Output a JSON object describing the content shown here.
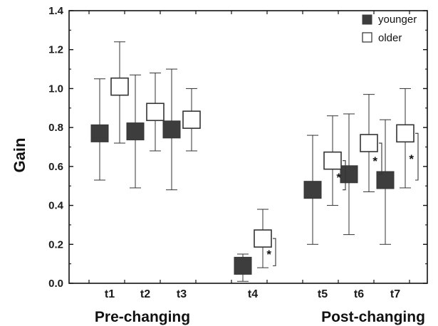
{
  "chart_data": {
    "type": "box",
    "ylabel": "Gain",
    "ylim": [
      0.0,
      1.4
    ],
    "yticks": [
      "0.0",
      "0.2",
      "0.4",
      "0.6",
      "0.8",
      "1.0",
      "1.2",
      "1.4"
    ],
    "categories": [
      "t1",
      "t2",
      "t3",
      "t4",
      "t5",
      "t6",
      "t7"
    ],
    "groups": [
      {
        "label": "Pre-changing",
        "categories": [
          "t1",
          "t2",
          "t3"
        ]
      },
      {
        "label": "Post-changing",
        "categories": [
          "t5",
          "t6",
          "t7"
        ]
      }
    ],
    "series": [
      {
        "name": "younger",
        "color": "#3d3d3d",
        "fill": "filled",
        "mean": [
          0.77,
          0.78,
          0.79,
          0.09,
          0.48,
          0.56,
          0.53
        ],
        "lower": [
          0.53,
          0.49,
          0.48,
          0.01,
          0.2,
          0.25,
          0.2
        ],
        "upper": [
          1.05,
          1.07,
          1.1,
          0.15,
          0.76,
          0.87,
          0.84
        ]
      },
      {
        "name": "older",
        "color": "#ffffff",
        "fill": "hollow",
        "mean": [
          1.01,
          0.88,
          0.84,
          0.23,
          0.63,
          0.72,
          0.77
        ],
        "lower": [
          0.72,
          0.68,
          0.68,
          0.08,
          0.4,
          0.47,
          0.49
        ],
        "upper": [
          1.24,
          1.08,
          1.0,
          0.38,
          0.86,
          0.97,
          1.0
        ]
      }
    ],
    "significance": [
      {
        "category": "t4",
        "label": "*"
      },
      {
        "category": "t5",
        "label": "*"
      },
      {
        "category": "t6",
        "label": "*"
      },
      {
        "category": "t7",
        "label": "*"
      }
    ],
    "legend_position": "top-right"
  }
}
